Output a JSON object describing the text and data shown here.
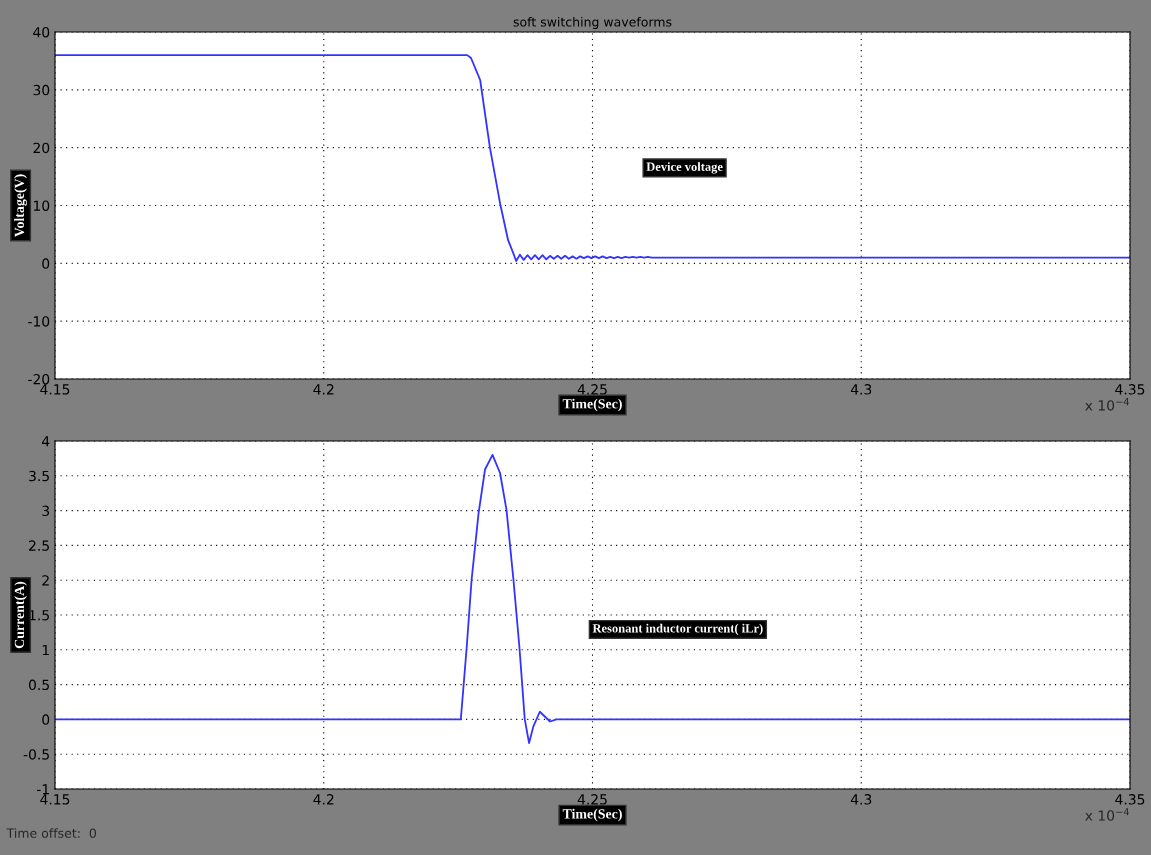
{
  "chart_data": [
    {
      "type": "line",
      "title": "soft switching waveforms",
      "xlabel": "Time(Sec)",
      "ylabel": "Voltage(V)",
      "xlim": [
        4.15,
        4.35
      ],
      "xticks": [
        4.15,
        4.2,
        4.25,
        4.3,
        4.35
      ],
      "ylim": [
        -20,
        40
      ],
      "yticks": [
        -20,
        -10,
        0,
        10,
        20,
        30,
        40
      ],
      "grid": true,
      "line_style": "solid",
      "annotations": [
        "x 10$^{−4}$"
      ],
      "series": [
        {
          "name": "Device voltage",
          "color": "#3333ff",
          "x": [
            4.15,
            4.2267,
            4.2274,
            4.2291,
            4.2309,
            4.2328,
            4.2343,
            4.2352,
            4.2358,
            4.2365,
            4.2372,
            4.2379,
            4.2386,
            4.2393,
            4.24,
            4.2407,
            4.2414,
            4.2421,
            4.2428,
            4.2435,
            4.2442,
            4.2449,
            4.2456,
            4.2463,
            4.247,
            4.2477,
            4.2484,
            4.2491,
            4.2498,
            4.2505,
            4.2512,
            4.2519,
            4.2526,
            4.2533,
            4.254,
            4.2547,
            4.2554,
            4.2561,
            4.2568,
            4.2575,
            4.2582,
            4.2589,
            4.2596,
            4.2603,
            4.261,
            4.35
          ],
          "values": [
            36,
            36,
            35.5,
            31.7,
            20.1,
            10.4,
            4.0,
            1.9,
            0.4,
            1.5,
            0.6,
            1.4,
            0.7,
            1.4,
            0.7,
            1.4,
            0.7,
            1.3,
            0.8,
            1.3,
            0.8,
            1.3,
            0.8,
            1.2,
            0.8,
            1.2,
            0.9,
            1.2,
            0.9,
            1.2,
            0.9,
            1.2,
            0.9,
            1.1,
            0.9,
            1.1,
            0.9,
            1.1,
            1.0,
            1.1,
            1.0,
            1.1,
            1.0,
            1.1,
            1.0,
            1.0
          ]
        }
      ]
    },
    {
      "type": "line",
      "xlabel": "Time(Sec)",
      "ylabel": "Current(A)",
      "xlim": [
        4.15,
        4.35
      ],
      "xticks": [
        4.15,
        4.2,
        4.25,
        4.3,
        4.35
      ],
      "ylim": [
        -1,
        4
      ],
      "yticks": [
        -1,
        -0.5,
        0,
        0.5,
        1,
        1.5,
        2,
        2.5,
        3,
        3.5,
        4
      ],
      "grid": true,
      "annotations": [
        "x 10$^{−4}$",
        "Time offset:  0"
      ],
      "series": [
        {
          "name": "Resonant inductor current( iLr)",
          "color": "#3333ff",
          "x": [
            4.15,
            4.2255,
            4.2266,
            4.2275,
            4.2288,
            4.23,
            4.2314,
            4.2328,
            4.234,
            4.2353,
            4.2364,
            4.2374,
            4.2382,
            4.239,
            4.2402,
            4.2421,
            4.2433,
            4.35
          ],
          "values": [
            0,
            0,
            1.04,
            2.0,
            2.96,
            3.59,
            3.8,
            3.54,
            3.01,
            2.0,
            1.04,
            0,
            -0.34,
            -0.1,
            0.11,
            -0.03,
            0,
            0
          ]
        }
      ]
    }
  ]
}
